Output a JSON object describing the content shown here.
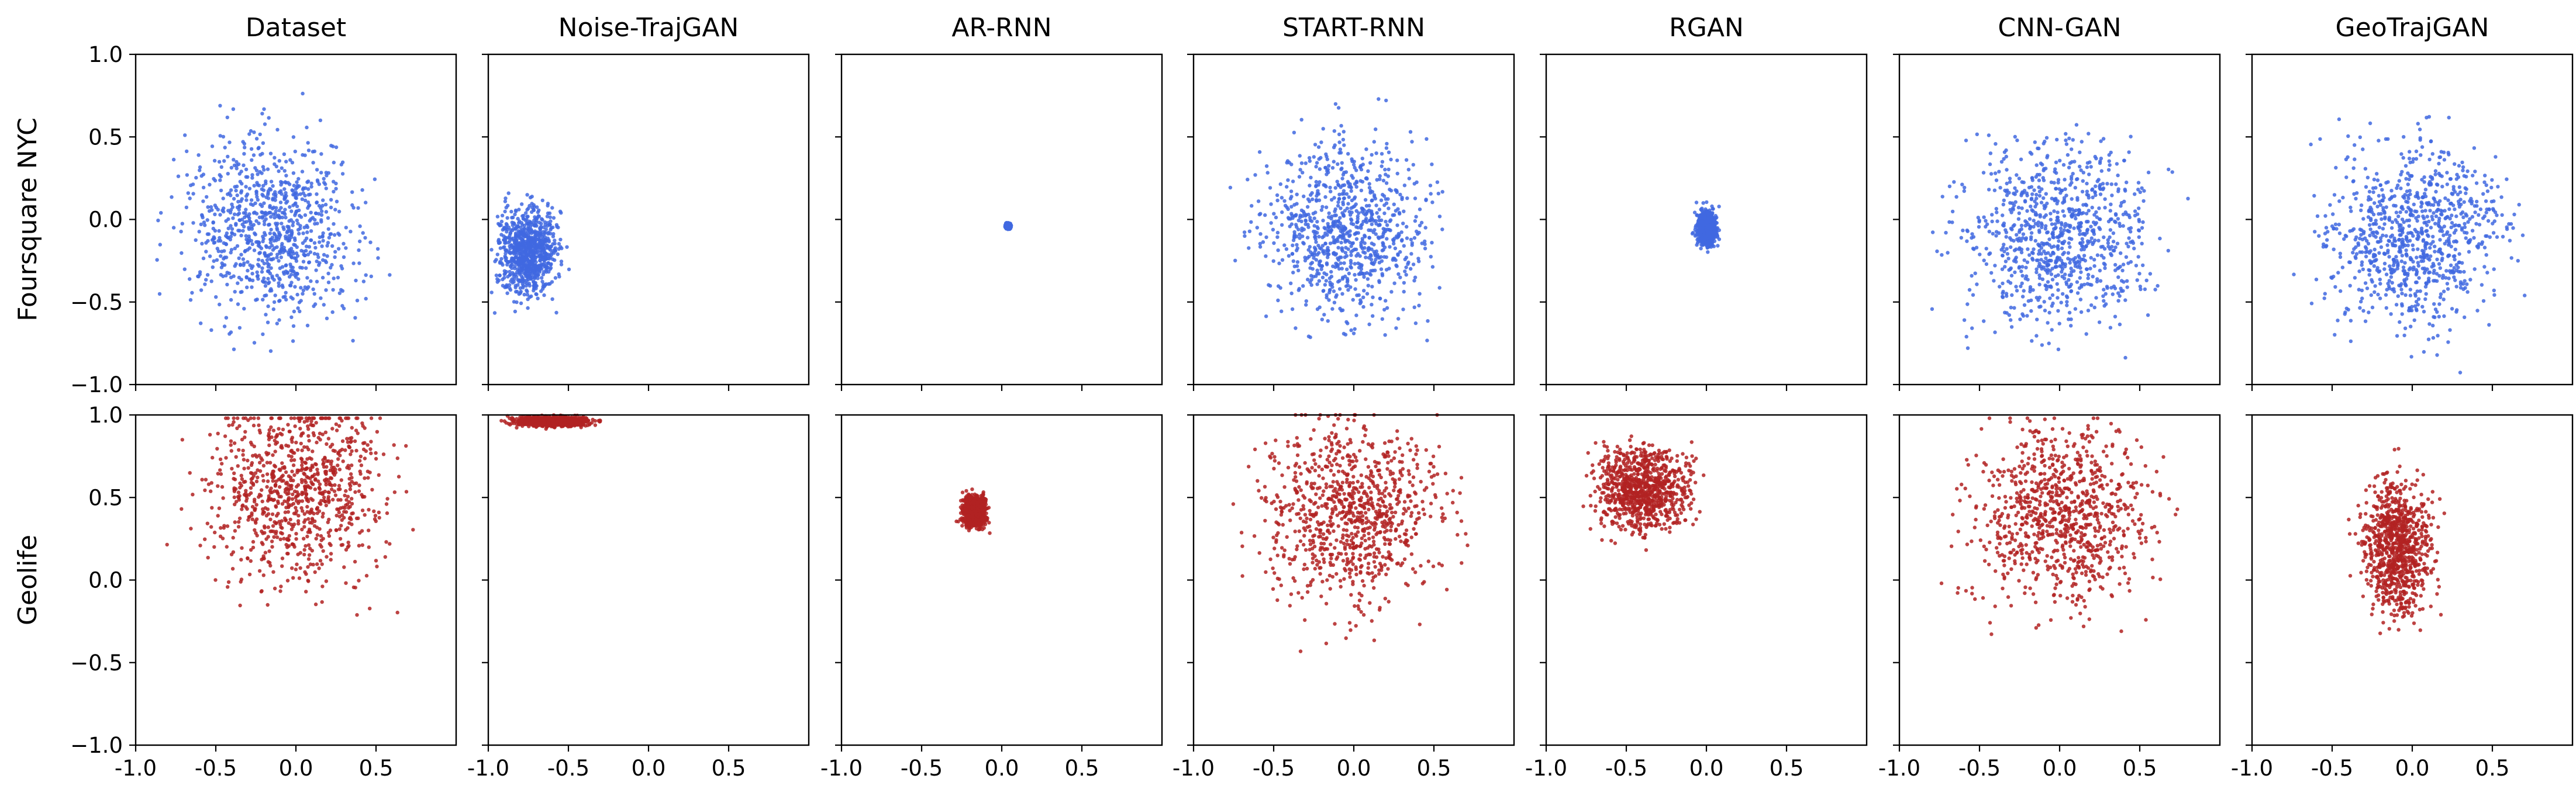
{
  "figure": {
    "columns": [
      "Dataset",
      "Noise-TrajGAN",
      "AR-RNN",
      "START-RNN",
      "RGAN",
      "CNN-GAN",
      "GeoTrajGAN"
    ],
    "rows": [
      "Foursquare NYC",
      "Geolife"
    ]
  },
  "chart_data": {
    "type": "scatter",
    "layout": "grid 2 rows x 7 columns, shared axes",
    "xlim": [
      -1.0,
      1.0
    ],
    "ylim": [
      -1.0,
      1.0
    ],
    "xticks": [
      -1.0,
      -0.5,
      0.0,
      0.5
    ],
    "xtick_labels": [
      "-1.0",
      "-0.5",
      "0.0",
      "0.5"
    ],
    "yticks": [
      1.0,
      0.5,
      0.0,
      -0.5,
      -1.0
    ],
    "ytick_labels": [
      "1.0",
      "0.5",
      "0.0",
      "−0.5",
      "−1.0"
    ],
    "grid": false,
    "colors": {
      "Foursquare NYC": "#4169E1",
      "Geolife": "#B22222"
    },
    "panels": [
      {
        "row": "Foursquare NYC",
        "column": "Dataset",
        "x_range": [
          -1.0,
          0.95
        ],
        "y_range": [
          -0.95,
          0.95
        ],
        "center": [
          -0.15,
          -0.05
        ]
      },
      {
        "row": "Foursquare NYC",
        "column": "Noise-TrajGAN",
        "x_range": [
          -0.98,
          -0.35
        ],
        "y_range": [
          -0.65,
          0.25
        ],
        "center": [
          -0.75,
          -0.2
        ]
      },
      {
        "row": "Foursquare NYC",
        "column": "AR-RNN",
        "x_range": [
          0.02,
          0.07
        ],
        "y_range": [
          -0.07,
          -0.02
        ],
        "center": [
          0.04,
          -0.04
        ]
      },
      {
        "row": "Foursquare NYC",
        "column": "START-RNN",
        "x_range": [
          -0.95,
          0.85
        ],
        "y_range": [
          -0.9,
          0.95
        ],
        "center": [
          -0.05,
          -0.05
        ]
      },
      {
        "row": "Foursquare NYC",
        "column": "RGAN",
        "x_range": [
          -0.1,
          0.1
        ],
        "y_range": [
          -0.25,
          0.12
        ],
        "center": [
          0.0,
          -0.05
        ]
      },
      {
        "row": "Foursquare NYC",
        "column": "CNN-GAN",
        "x_range": [
          -1.0,
          0.95
        ],
        "y_range": [
          -0.98,
          0.98
        ],
        "center": [
          0.0,
          -0.1
        ]
      },
      {
        "row": "Foursquare NYC",
        "column": "GeoTrajGAN",
        "x_range": [
          -0.95,
          0.95
        ],
        "y_range": [
          -0.95,
          0.95
        ],
        "center": [
          0.0,
          -0.1
        ]
      },
      {
        "row": "Geolife",
        "column": "Dataset",
        "x_range": [
          -1.0,
          0.95
        ],
        "y_range": [
          -0.98,
          0.98
        ],
        "center": [
          0.0,
          0.55
        ]
      },
      {
        "row": "Geolife",
        "column": "Noise-TrajGAN",
        "x_range": [
          -0.98,
          -0.2
        ],
        "y_range": [
          0.9,
          1.0
        ],
        "center": [
          -0.6,
          0.96
        ]
      },
      {
        "row": "Geolife",
        "column": "AR-RNN",
        "x_range": [
          -0.3,
          -0.05
        ],
        "y_range": [
          0.25,
          0.58
        ],
        "center": [
          -0.17,
          0.42
        ]
      },
      {
        "row": "Geolife",
        "column": "START-RNN",
        "x_range": [
          -0.95,
          0.95
        ],
        "y_range": [
          -0.95,
          1.0
        ],
        "center": [
          0.0,
          0.4
        ]
      },
      {
        "row": "Geolife",
        "column": "RGAN",
        "x_range": [
          -1.0,
          0.05
        ],
        "y_range": [
          0.15,
          1.0
        ],
        "center": [
          -0.4,
          0.55
        ]
      },
      {
        "row": "Geolife",
        "column": "CNN-GAN",
        "x_range": [
          -1.0,
          0.95
        ],
        "y_range": [
          -0.9,
          0.98
        ],
        "center": [
          0.0,
          0.4
        ]
      },
      {
        "row": "Geolife",
        "column": "GeoTrajGAN",
        "x_range": [
          -0.55,
          0.2
        ],
        "y_range": [
          -0.45,
          0.95
        ],
        "center": [
          -0.1,
          0.2
        ]
      }
    ]
  }
}
